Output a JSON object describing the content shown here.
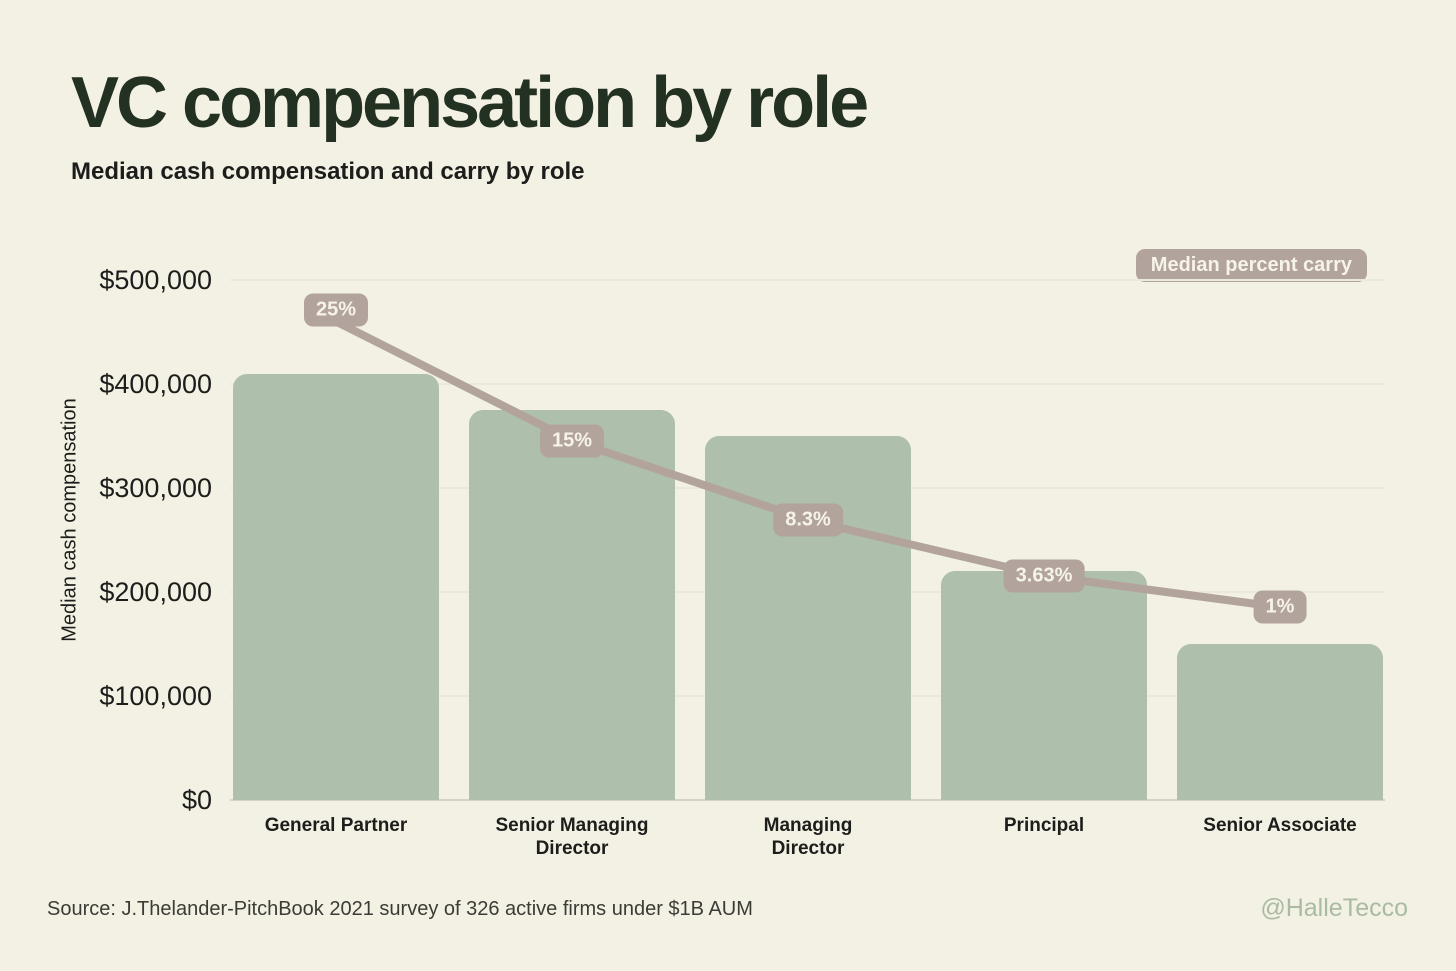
{
  "page": {
    "title": "VC compensation by role",
    "subtitle": "Median cash compensation and carry by role",
    "source": "Source: J.Thelander-PitchBook 2021 survey of 326 active firms under $1B AUM",
    "watermark": "@HalleTecco"
  },
  "legend": {
    "label": "Median percent carry"
  },
  "y_axis": {
    "title": "Median cash compensation",
    "ticks": [
      "$0",
      "$100,000",
      "$200,000",
      "$300,000",
      "$400,000",
      "$500,000"
    ]
  },
  "x_axis": {
    "label_lines": [
      [
        "General Partner"
      ],
      [
        "Senior Managing",
        "Director"
      ],
      [
        "Managing",
        "Director"
      ],
      [
        "Principal"
      ],
      [
        "Senior Associate"
      ]
    ]
  },
  "chart_data": {
    "type": "bar",
    "subtype": "combo bar + line (secondary axis)",
    "title": "VC compensation by role",
    "subtitle": "Median cash compensation and carry by role",
    "categories": [
      "General Partner",
      "Senior Managing Director",
      "Managing Director",
      "Principal",
      "Senior Associate"
    ],
    "series": [
      {
        "name": "Median cash compensation",
        "type": "bar",
        "values": [
          410000,
          375000,
          350000,
          220000,
          150000
        ],
        "color": "#aebfab"
      },
      {
        "name": "Median percent carry",
        "type": "line",
        "values": [
          25,
          15,
          8.3,
          3.63,
          1
        ],
        "point_labels": [
          "25%",
          "15%",
          "8.3%",
          "3.63%",
          "1%"
        ],
        "color": "#b2a49c"
      }
    ],
    "xlabel": "",
    "ylabel": "Median cash compensation",
    "ylim": [
      0,
      500000
    ],
    "y_tick_step": 100000,
    "grid": true,
    "legend_position": "top-right",
    "source": "Source: J.Thelander-PitchBook 2021 survey of 326 active firms under $1B AUM",
    "credit": "@HalleTecco"
  },
  "colors": {
    "background": "#f2f1e4",
    "bar": "#aebfab",
    "carry_line": "#b2a49c",
    "chip_text": "#f6f3eb",
    "title": "#233122",
    "text": "#1d1d1b",
    "muted_text": "#3c3c36",
    "watermark": "#a9bba3",
    "gridline": "#eae9dc",
    "axis_line": "#d4d3c6"
  }
}
